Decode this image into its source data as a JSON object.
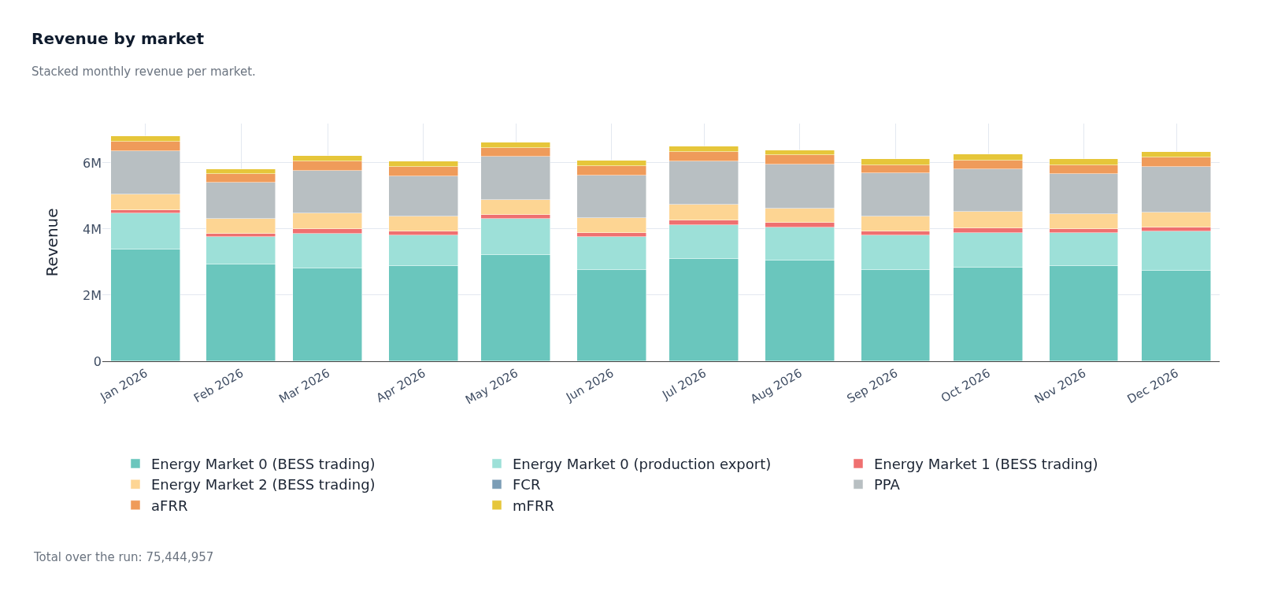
{
  "chart_data": {
    "type": "bar",
    "title": "Revenue by market",
    "subtitle": "Stacked monthly revenue per market.",
    "ylabel": "Revenue",
    "annotations": [
      "Total over the run: 75,444,957"
    ],
    "x": [
      "2026-01",
      "2026-02",
      "2026-03",
      "2026-04",
      "2026-05",
      "2026-06",
      "2026-07",
      "2026-08",
      "2026-09",
      "2026-10",
      "2026-11",
      "2026-12"
    ],
    "stacked": true,
    "series": [
      {
        "name": "Energy Market 0 (BESS trading)",
        "color": "#6ac6bd",
        "values": [
          3390000,
          2930000,
          2810000,
          2880000,
          3220000,
          2760000,
          3100000,
          3040000,
          2770000,
          2830000,
          2870000,
          2730000
        ]
      },
      {
        "name": "Energy Market 0 (production export)",
        "color": "#9de0d8",
        "values": [
          1080000,
          830000,
          1040000,
          930000,
          1100000,
          990000,
          1030000,
          1010000,
          1030000,
          1060000,
          1020000,
          1190000
        ]
      },
      {
        "name": "Energy Market 1 (BESS trading)",
        "color": "#ef7070",
        "values": [
          110000,
          100000,
          150000,
          110000,
          100000,
          140000,
          140000,
          140000,
          120000,
          130000,
          120000,
          130000
        ]
      },
      {
        "name": "Energy Market 2 (BESS trading)",
        "color": "#fdd593",
        "values": [
          470000,
          440000,
          480000,
          460000,
          470000,
          450000,
          470000,
          440000,
          460000,
          500000,
          440000,
          460000
        ]
      },
      {
        "name": "FCR",
        "color": "#7b9db6",
        "values": [
          0,
          0,
          0,
          0,
          0,
          0,
          0,
          0,
          0,
          0,
          0,
          0
        ]
      },
      {
        "name": "PPA",
        "color": "#b8bfc2",
        "values": [
          1310000,
          1110000,
          1290000,
          1220000,
          1290000,
          1290000,
          1310000,
          1320000,
          1310000,
          1280000,
          1220000,
          1370000
        ]
      },
      {
        "name": "aFRR",
        "color": "#ef9b5a",
        "values": [
          280000,
          260000,
          280000,
          280000,
          270000,
          270000,
          280000,
          280000,
          250000,
          270000,
          260000,
          280000
        ]
      },
      {
        "name": "mFRR",
        "color": "#e6c63a",
        "values": [
          180000,
          150000,
          170000,
          170000,
          170000,
          170000,
          170000,
          160000,
          170000,
          180000,
          180000,
          180000
        ]
      }
    ],
    "xlim": [
      "2025-12-18",
      "2026-12-15"
    ],
    "xticks": [
      {
        "value": "2026-01",
        "label": "Jan 2026"
      },
      {
        "value": "2026-02",
        "label": "Feb 2026"
      },
      {
        "value": "2026-03",
        "label": "Mar 2026"
      },
      {
        "value": "2026-04",
        "label": "Apr 2026"
      },
      {
        "value": "2026-05",
        "label": "May 2026"
      },
      {
        "value": "2026-06",
        "label": "Jun 2026"
      },
      {
        "value": "2026-07",
        "label": "Jul 2026"
      },
      {
        "value": "2026-08",
        "label": "Aug 2026"
      },
      {
        "value": "2026-09",
        "label": "Sep 2026"
      },
      {
        "value": "2026-10",
        "label": "Oct 2026"
      },
      {
        "value": "2026-11",
        "label": "Nov 2026"
      },
      {
        "value": "2026-12",
        "label": "Dec 2026"
      }
    ],
    "ylim": [
      0,
      7190000
    ],
    "yticks": [
      0,
      {
        "value": 2000000,
        "label": "2M"
      },
      {
        "value": 4000000,
        "label": "4M"
      },
      {
        "value": 6000000,
        "label": "6M"
      }
    ],
    "grid": true,
    "legend": "bottom"
  }
}
